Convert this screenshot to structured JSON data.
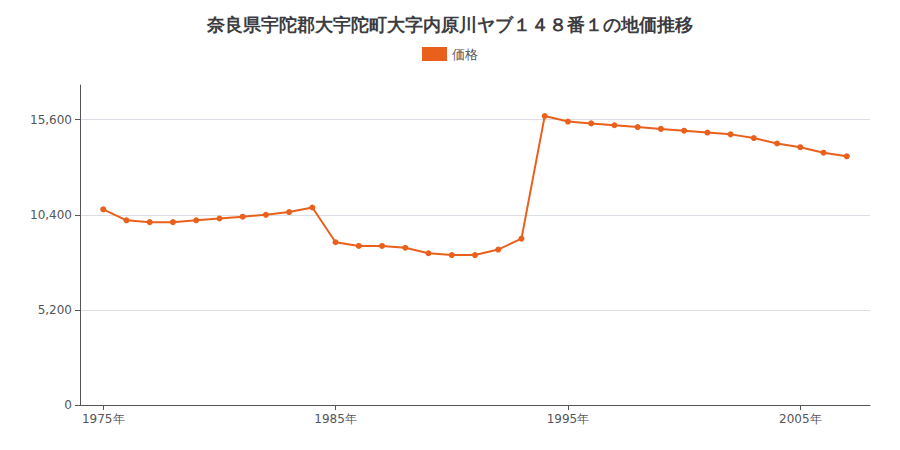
{
  "chart_data": {
    "type": "line",
    "title": "奈良県宇陀郡大宇陀町大字内原川ヤブ１４８番１の地価推移",
    "x": [
      1975,
      1976,
      1977,
      1978,
      1979,
      1980,
      1981,
      1982,
      1983,
      1984,
      1985,
      1986,
      1987,
      1988,
      1989,
      1990,
      1991,
      1992,
      1993,
      1994,
      1995,
      1996,
      1997,
      1998,
      1999,
      2000,
      2001,
      2002,
      2003,
      2004,
      2005,
      2006,
      2007
    ],
    "series": [
      {
        "name": "価格",
        "color": "#e8601c",
        "marker": "circle",
        "values": [
          10700,
          10100,
          10000,
          10000,
          10100,
          10200,
          10300,
          10400,
          10550,
          10800,
          8900,
          8700,
          8700,
          8600,
          8300,
          8200,
          8200,
          8500,
          9100,
          15800,
          15500,
          15400,
          15300,
          15200,
          15100,
          15000,
          14900,
          14800,
          14600,
          14300,
          14100,
          13800,
          13600
        ]
      }
    ],
    "xlim": [
      1974,
      2008
    ],
    "ylim": [
      0,
      17500
    ],
    "xticks": [
      {
        "value": 1975,
        "label": "1975年"
      },
      {
        "value": 1985,
        "label": "1985年"
      },
      {
        "value": 1995,
        "label": "1995年"
      },
      {
        "value": 2005,
        "label": "2005年"
      }
    ],
    "yticks": [
      0,
      {
        "value": 5200,
        "label": "5,200"
      },
      {
        "value": 10400,
        "label": "10,400"
      },
      {
        "value": 15600,
        "label": "15,600"
      }
    ],
    "grid": true,
    "legend": "top"
  }
}
